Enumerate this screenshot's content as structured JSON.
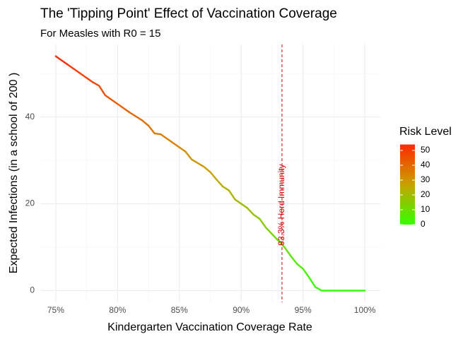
{
  "chart_data": {
    "type": "line",
    "title": "The 'Tipping Point' Effect of Vaccination Coverage",
    "subtitle": "For Measles with R0 = 15",
    "x_label": "Kindergarten Vaccination Coverage Rate",
    "y_label": "Expected Infections (in a school of 200 )",
    "x": [
      75,
      76,
      77,
      78,
      78.5,
      79,
      80,
      81,
      82,
      82.5,
      83,
      83.5,
      84,
      85,
      85.5,
      86,
      87,
      87.5,
      88,
      88.5,
      89,
      89.5,
      90,
      90.5,
      91,
      91.5,
      92,
      92.5,
      93,
      93.5,
      94,
      94.5,
      95,
      95.5,
      96,
      96.5,
      97,
      98,
      99,
      100
    ],
    "values": [
      54,
      52,
      50,
      48,
      47.2,
      45,
      43,
      41,
      39.2,
      38,
      36.2,
      36,
      35,
      33,
      32,
      30.2,
      28.5,
      27.3,
      25.6,
      24,
      23.1,
      21,
      20,
      19,
      17.5,
      16.5,
      14.5,
      13,
      11.5,
      10,
      8,
      6.2,
      5,
      3,
      0.8,
      0,
      0,
      0,
      0,
      0
    ],
    "colorscale": [
      "#33ff00",
      "#c9a200",
      "#ff2a00"
    ],
    "xlim": [
      73.75,
      101.25
    ],
    "ylim": [
      -2.7,
      56.7
    ],
    "xticks": [
      {
        "value": 75,
        "label": "75%"
      },
      {
        "value": 80,
        "label": "80%"
      },
      {
        "value": 85,
        "label": "85%"
      },
      {
        "value": 90,
        "label": "90%"
      },
      {
        "value": 95,
        "label": "95%"
      },
      {
        "value": 100,
        "label": "100%"
      }
    ],
    "yticks": [
      0,
      20,
      40
    ],
    "grid": true,
    "vline": {
      "value": 93.3,
      "label": "93.3% Herd Immunity",
      "color": "#cc0000"
    },
    "legend": {
      "title": "Risk Level",
      "ticks": [
        0,
        10,
        20,
        30,
        40,
        50
      ]
    }
  }
}
